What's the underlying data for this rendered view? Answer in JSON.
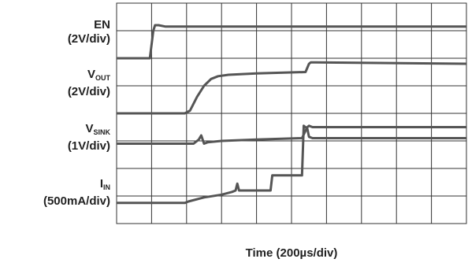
{
  "chart_data": {
    "type": "line",
    "title": "",
    "xlabel": "Time (200µs/div)",
    "grid": true,
    "divisions": {
      "x": 10,
      "y": 8
    },
    "x_units": "div",
    "xlim": [
      0,
      10
    ],
    "ylim": [
      0,
      8
    ],
    "trace_color": "#555555",
    "labels": [
      {
        "main": "EN",
        "sub": "",
        "scale": "(2V/div)"
      },
      {
        "main": "V",
        "sub": "OUT",
        "scale": "(2V/div)"
      },
      {
        "main": "V",
        "sub": "SINK",
        "scale": "(1V/div)"
      },
      {
        "main": "I",
        "sub": "IN",
        "scale": "(500mA/div)"
      }
    ],
    "series": [
      {
        "name": "EN",
        "x": [
          0,
          0.95,
          1.05,
          1.1,
          1.2,
          1.4,
          10
        ],
        "y": [
          6.0,
          6.0,
          7.0,
          7.2,
          7.2,
          7.15,
          7.15
        ]
      },
      {
        "name": "VOUT",
        "x": [
          0,
          1.95,
          2.1,
          2.3,
          2.5,
          2.7,
          2.9,
          3.2,
          4.0,
          5.4,
          5.5,
          5.55,
          5.7,
          10
        ],
        "y": [
          4.0,
          4.0,
          4.1,
          4.6,
          5.0,
          5.25,
          5.35,
          5.4,
          5.45,
          5.5,
          5.8,
          5.85,
          5.85,
          5.8
        ]
      },
      {
        "name": "VSINK",
        "x": [
          0,
          2.0,
          2.2,
          2.35,
          2.42,
          2.5,
          2.6,
          3.0,
          4.0,
          5.3,
          5.45,
          5.5,
          5.6,
          6.0,
          10
        ],
        "y": [
          2.9,
          2.9,
          2.9,
          3.05,
          3.2,
          2.9,
          2.95,
          3.0,
          3.05,
          3.1,
          3.5,
          3.55,
          3.5,
          3.5,
          3.5
        ]
      },
      {
        "name": "IIN",
        "x": [
          0,
          1.95,
          2.05,
          2.5,
          3.0,
          3.3,
          3.4,
          3.45,
          3.5,
          4.4,
          4.45,
          5.3,
          5.35,
          5.45,
          5.5,
          5.6,
          10
        ],
        "y": [
          0.75,
          0.75,
          0.8,
          0.95,
          1.05,
          1.15,
          1.2,
          1.45,
          1.2,
          1.2,
          1.75,
          1.75,
          3.55,
          3.45,
          3.15,
          3.1,
          3.1
        ]
      }
    ]
  }
}
